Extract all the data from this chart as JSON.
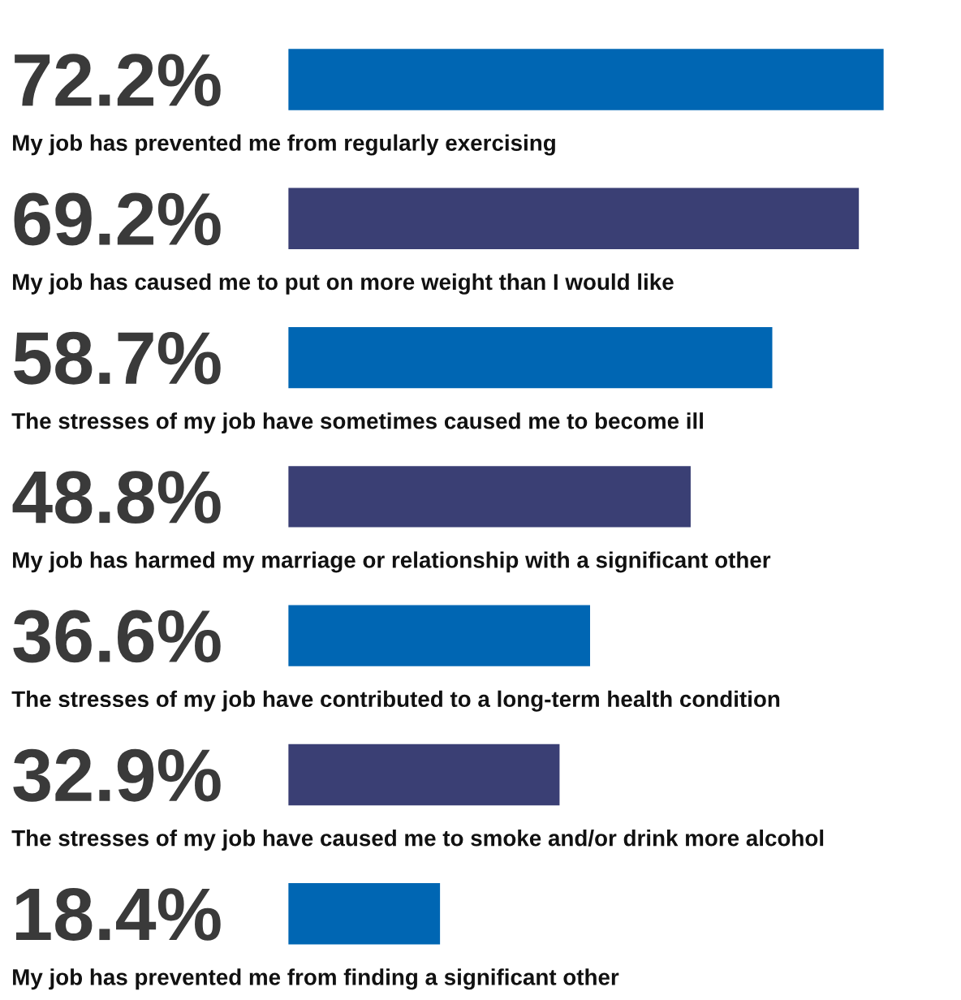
{
  "chart_data": {
    "type": "bar",
    "orientation": "horizontal",
    "categories": [
      "My job has prevented me from regularly exercising",
      "My job has caused me to put on more weight than I would like",
      "The stresses of my job have sometimes caused me to become ill",
      "My job has harmed my marriage or relationship with a significant other",
      "The stresses of my job have contributed to a long-term health condition",
      "The stresses of my job have caused me to smoke and/or drink more alcohol",
      "My job has prevented me from finding a significant other"
    ],
    "values": [
      72.2,
      69.2,
      58.7,
      48.8,
      36.6,
      32.9,
      18.4
    ],
    "colors": [
      "#0066b3",
      "#3a3f74",
      "#0066b3",
      "#3a3f74",
      "#0066b3",
      "#3a3f74",
      "#0066b3"
    ],
    "value_labels": [
      "72.2%",
      "69.2%",
      "58.7%",
      "48.8%",
      "36.6%",
      "32.9%",
      "18.4%"
    ]
  }
}
